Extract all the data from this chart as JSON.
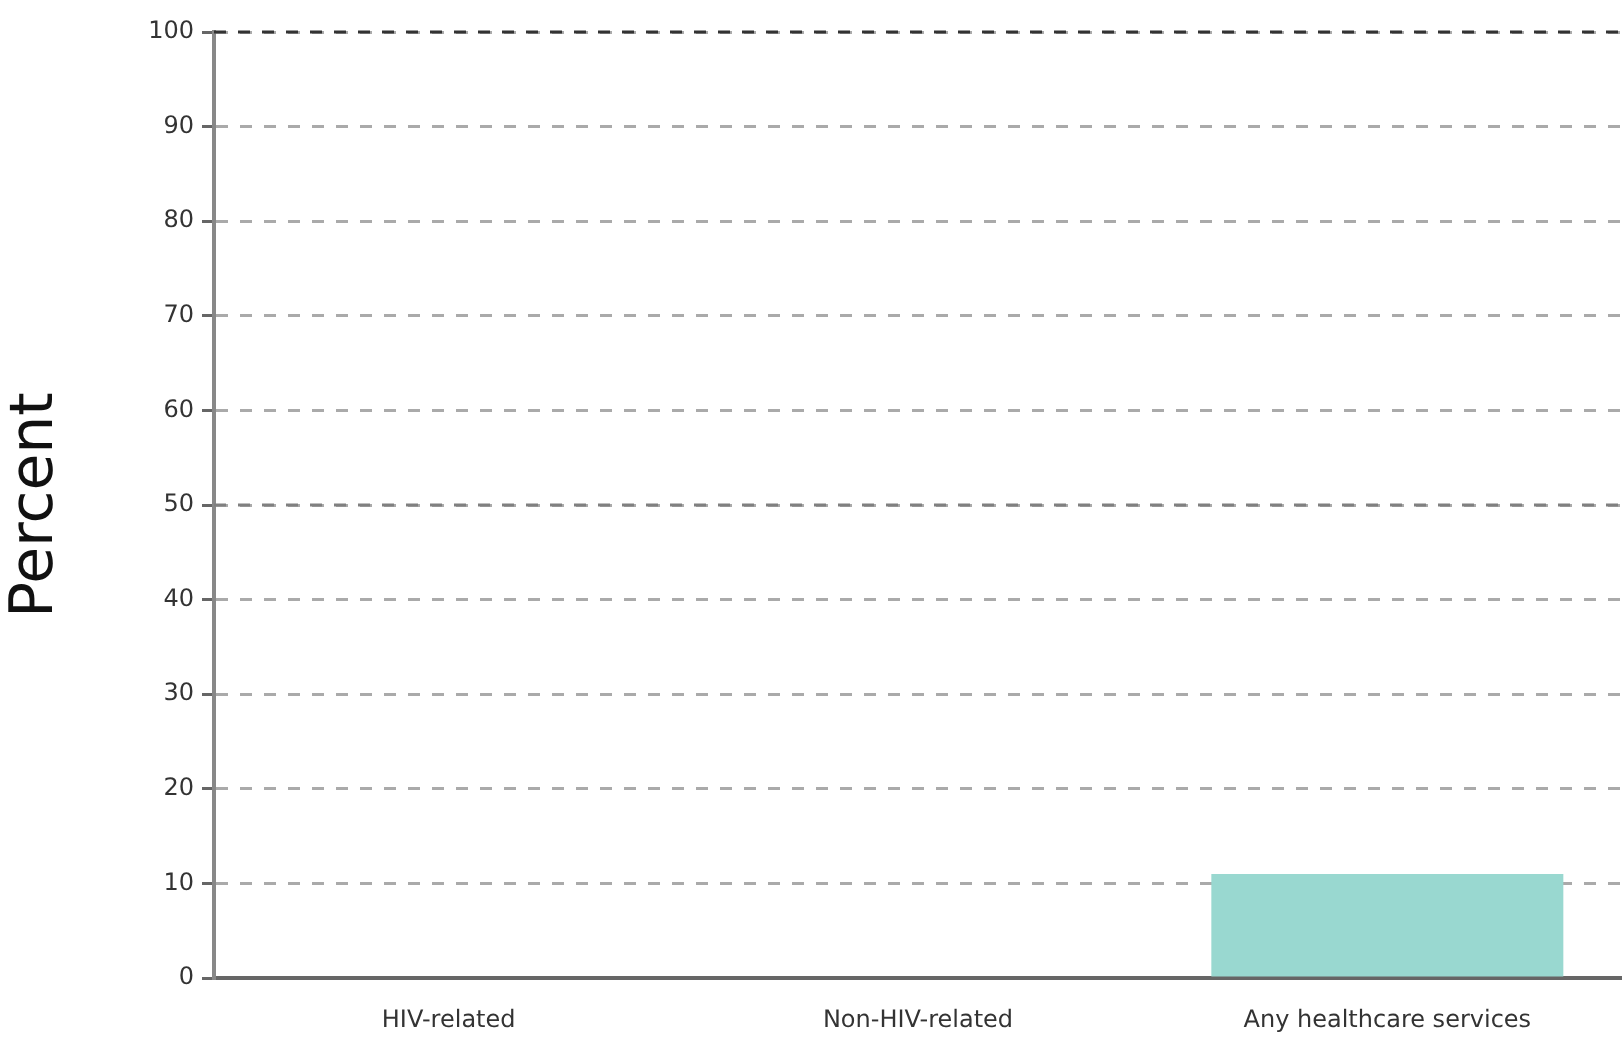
{
  "chart_data": {
    "type": "bar",
    "ylabel": "Percent",
    "categories": [
      "HIV-related",
      "Non-HIV-related",
      "Any healthcare services"
    ],
    "values": [
      0,
      0,
      11
    ],
    "color": "#99d8d0",
    "ylim": [
      0,
      100
    ],
    "yticks": [
      0,
      10,
      20,
      30,
      40,
      50,
      60,
      70,
      80,
      90,
      100
    ],
    "grid": "y",
    "line_style": "dashed",
    "ref_lines": [
      {
        "axis": "y",
        "value": 100,
        "label": null,
        "color": "#333333",
        "line_style": "dashed"
      },
      {
        "axis": "y",
        "value": 50,
        "label": null,
        "color": "#808080",
        "line_style": "dashed"
      }
    ],
    "legend": false
  }
}
